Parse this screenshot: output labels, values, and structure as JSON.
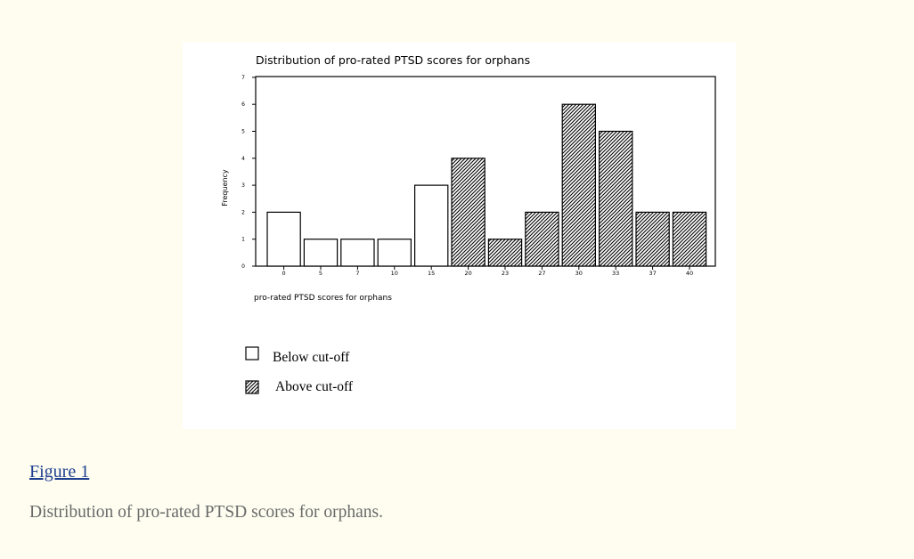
{
  "figure": {
    "link_label": "Figure 1",
    "caption": "Distribution of pro-rated PTSD scores for orphans."
  },
  "chart_data": {
    "type": "bar",
    "title": "Distribution of pro-rated PTSD scores for orphans",
    "xlabel": "pro-rated PTSD scores for orphans",
    "ylabel": "Frequency",
    "ylim": [
      0,
      7
    ],
    "y_ticks": [
      "0",
      "1",
      "2",
      "3",
      "4",
      "5",
      "6",
      "7"
    ],
    "categories": [
      "0",
      "5",
      "7",
      "10",
      "15",
      "20",
      "23",
      "27",
      "30",
      "33",
      "37",
      "40"
    ],
    "values": [
      2,
      1,
      1,
      1,
      3,
      4,
      1,
      2,
      6,
      5,
      2,
      2
    ],
    "group": [
      "below",
      "below",
      "below",
      "below",
      "below",
      "above",
      "above",
      "above",
      "above",
      "above",
      "above",
      "above"
    ],
    "legend": [
      {
        "key": "below",
        "label": "Below cut-off",
        "fill": "#ffffff"
      },
      {
        "key": "above",
        "label": "Above cut-off",
        "fill": "hatched"
      }
    ],
    "grid": false
  }
}
